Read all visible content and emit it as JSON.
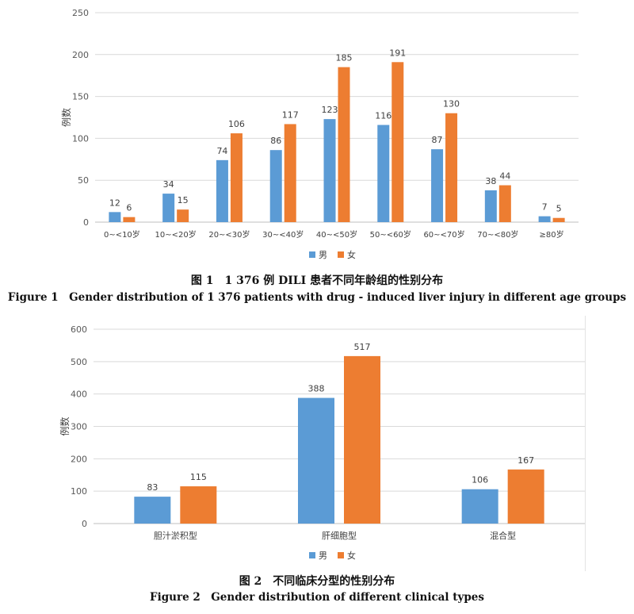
{
  "chart_data": [
    {
      "type": "bar",
      "ylabel": "例数",
      "ylim": [
        0,
        250
      ],
      "yticks": [
        0,
        50,
        100,
        150,
        200,
        250
      ],
      "grid": true,
      "legend_position": "bottom",
      "categories": [
        "0~<10岁",
        "10~<20岁",
        "20~<30岁",
        "30~<40岁",
        "40~<50岁",
        "50~<60岁",
        "60~<70岁",
        "70~<80岁",
        "≥80岁"
      ],
      "series": [
        {
          "name": "男",
          "color": "#5b9bd5",
          "values": [
            12,
            34,
            74,
            86,
            123,
            116,
            87,
            38,
            7
          ]
        },
        {
          "name": "女",
          "color": "#ed7d31",
          "values": [
            6,
            15,
            106,
            117,
            185,
            191,
            130,
            44,
            5
          ]
        }
      ],
      "caption_cn": "图 1　1 376 例 DILI 患者不同年龄组的性别分布",
      "caption_en": "Figure 1　Gender distribution of 1 376 patients with drug - induced liver injury in different age groups"
    },
    {
      "type": "bar",
      "ylabel": "例数",
      "ylim": [
        0,
        600
      ],
      "yticks": [
        0,
        100,
        200,
        300,
        400,
        500,
        600
      ],
      "grid": true,
      "legend_position": "bottom",
      "categories": [
        "胆汁淤积型",
        "肝细胞型",
        "混合型"
      ],
      "series": [
        {
          "name": "男",
          "color": "#5b9bd5",
          "values": [
            83,
            388,
            106
          ]
        },
        {
          "name": "女",
          "color": "#ed7d31",
          "values": [
            115,
            517,
            167
          ]
        }
      ],
      "caption_cn": "图 2　不同临床分型的性别分布",
      "caption_en": "Figure 2　Gender distribution of different clinical types"
    }
  ]
}
